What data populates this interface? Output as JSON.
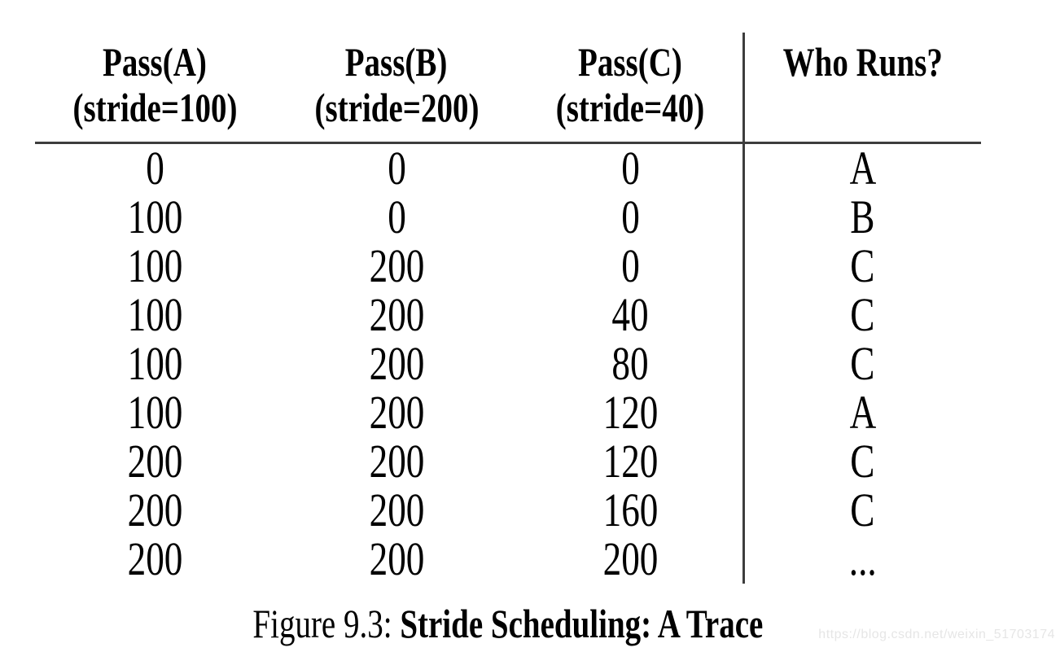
{
  "table": {
    "columns": [
      {
        "title": "Pass(A)",
        "subtitle": "(stride=100)"
      },
      {
        "title": "Pass(B)",
        "subtitle": "(stride=200)"
      },
      {
        "title": "Pass(C)",
        "subtitle": "(stride=40)"
      },
      {
        "title": "Who Runs?",
        "subtitle": ""
      }
    ],
    "rows": [
      [
        "0",
        "0",
        "0",
        "A"
      ],
      [
        "100",
        "0",
        "0",
        "B"
      ],
      [
        "100",
        "200",
        "0",
        "C"
      ],
      [
        "100",
        "200",
        "40",
        "C"
      ],
      [
        "100",
        "200",
        "80",
        "C"
      ],
      [
        "100",
        "200",
        "120",
        "A"
      ],
      [
        "200",
        "200",
        "120",
        "C"
      ],
      [
        "200",
        "200",
        "160",
        "C"
      ],
      [
        "200",
        "200",
        "200",
        "..."
      ]
    ]
  },
  "caption": {
    "prefix": "Figure 9.3:",
    "title": "Stride Scheduling: A Trace"
  },
  "watermark": "https://blog.csdn.net/weixin_51703174",
  "colors": {
    "background": "#ffffff",
    "text": "#000000",
    "rule": "#3d3d3d",
    "watermark": "#e6e6e6"
  },
  "chart_data": {
    "type": "table",
    "title": "Figure 9.3: Stride Scheduling: A Trace",
    "columns": [
      "Pass(A) (stride=100)",
      "Pass(B) (stride=200)",
      "Pass(C) (stride=40)",
      "Who Runs?"
    ],
    "rows": [
      [
        0,
        0,
        0,
        "A"
      ],
      [
        100,
        0,
        0,
        "B"
      ],
      [
        100,
        200,
        0,
        "C"
      ],
      [
        100,
        200,
        40,
        "C"
      ],
      [
        100,
        200,
        80,
        "C"
      ],
      [
        100,
        200,
        120,
        "A"
      ],
      [
        200,
        200,
        120,
        "C"
      ],
      [
        200,
        200,
        160,
        "C"
      ],
      [
        200,
        200,
        200,
        "..."
      ]
    ]
  }
}
